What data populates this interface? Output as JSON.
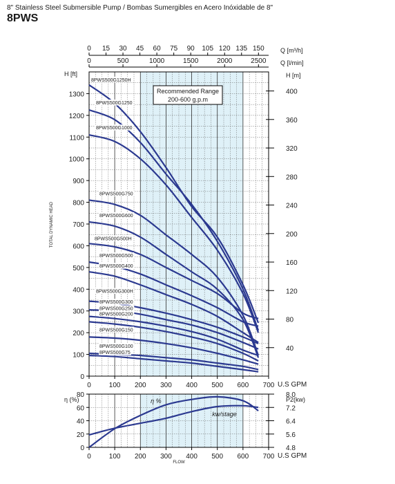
{
  "header": {
    "subtitle": "8\" Stainless Steel Submersible Pump / Bombas Sumergibles en Acero Inóxidable de 8\"",
    "title": "8PWS"
  },
  "colors": {
    "curve": "#2b3990",
    "range_fill": "#dff1f8",
    "grid": "#666666",
    "axis": "#000000"
  },
  "chart_data": [
    {
      "type": "line",
      "subtitle": "Recommended Range",
      "title": "200-600 g.p.m",
      "xlabel": "U.S GPM",
      "ylabel": "H [ft]",
      "side_label": "TOTAL DYNAMIC HEAD",
      "xlim": [
        0,
        700
      ],
      "ylim": [
        0,
        1400
      ],
      "x_ticks": [
        0,
        100,
        200,
        300,
        400,
        500,
        600,
        700
      ],
      "y_ticks": [
        0,
        100,
        200,
        300,
        400,
        500,
        600,
        700,
        800,
        900,
        1000,
        1100,
        1200,
        1300
      ],
      "y2_label": "H [m]",
      "y2_ticks": [
        40,
        80,
        120,
        160,
        200,
        240,
        280,
        320,
        360,
        400
      ],
      "top_axis_1": {
        "label": "Q [m³/h]",
        "ticks": [
          0,
          15,
          30,
          45,
          60,
          75,
          90,
          105,
          120,
          135,
          150
        ]
      },
      "top_axis_2": {
        "label": "Q [l/min]",
        "ticks": [
          0,
          500,
          1000,
          1500,
          2000,
          2500
        ]
      },
      "recommended_range": [
        200,
        600
      ],
      "grid": true,
      "series": [
        {
          "name": "8PWS500G1250H",
          "x": [
            0,
            100,
            200,
            300,
            400,
            500,
            600,
            660
          ],
          "y": [
            1340,
            1255,
            1125,
            960,
            780,
            640,
            420,
            245
          ]
        },
        {
          "name": "8PWS500G1250",
          "x": [
            0,
            100,
            200,
            300,
            400,
            500,
            600,
            660
          ],
          "y": [
            1225,
            1180,
            1075,
            930,
            790,
            620,
            400,
            210
          ]
        },
        {
          "name": "8PWS500G1000",
          "x": [
            0,
            100,
            200,
            300,
            400,
            500,
            600,
            660
          ],
          "y": [
            1110,
            1080,
            1000,
            880,
            730,
            580,
            380,
            200
          ]
        },
        {
          "name": "8PWS500G750",
          "x": [
            0,
            100,
            200,
            300,
            400,
            500,
            600,
            660
          ],
          "y": [
            810,
            790,
            740,
            650,
            560,
            455,
            280,
            95
          ]
        },
        {
          "name": "8PWS500G600",
          "x": [
            0,
            100,
            200,
            300,
            400,
            500,
            600,
            660
          ],
          "y": [
            710,
            690,
            640,
            560,
            480,
            400,
            260,
            85
          ]
        },
        {
          "name": "8PWS500G500H",
          "x": [
            0,
            100,
            200,
            300,
            400,
            500,
            600,
            660
          ],
          "y": [
            610,
            595,
            560,
            500,
            440,
            380,
            290,
            265
          ]
        },
        {
          "name": "8PWS500G500",
          "x": [
            0,
            100,
            200,
            300,
            400,
            500,
            600,
            660
          ],
          "y": [
            525,
            505,
            470,
            420,
            370,
            315,
            250,
            230
          ]
        },
        {
          "name": "8PWS500G400",
          "x": [
            0,
            100,
            200,
            300,
            400,
            500,
            600,
            660
          ],
          "y": [
            480,
            460,
            420,
            375,
            330,
            275,
            200,
            155
          ]
        },
        {
          "name": "8PWS500G300H",
          "x": [
            0,
            100,
            200,
            300,
            400,
            500,
            600,
            660
          ],
          "y": [
            345,
            335,
            315,
            290,
            260,
            225,
            180,
            150
          ]
        },
        {
          "name": "8PWS500G300",
          "x": [
            0,
            100,
            200,
            300,
            400,
            500,
            600,
            660
          ],
          "y": [
            305,
            300,
            285,
            260,
            235,
            200,
            155,
            125
          ]
        },
        {
          "name": "8PWS500G250",
          "x": [
            0,
            100,
            200,
            300,
            400,
            500,
            600,
            660
          ],
          "y": [
            275,
            265,
            250,
            230,
            205,
            170,
            120,
            95
          ]
        },
        {
          "name": "8PWS500G200",
          "x": [
            0,
            100,
            200,
            300,
            400,
            500,
            600,
            660
          ],
          "y": [
            250,
            240,
            225,
            205,
            180,
            150,
            105,
            70
          ]
        },
        {
          "name": "8PWS500G150",
          "x": [
            0,
            100,
            200,
            300,
            400,
            500,
            600,
            660
          ],
          "y": [
            180,
            175,
            165,
            150,
            130,
            105,
            75,
            55
          ]
        },
        {
          "name": "8PWS500G100",
          "x": [
            0,
            100,
            200,
            300,
            400,
            500,
            600,
            660
          ],
          "y": [
            105,
            100,
            95,
            85,
            75,
            60,
            45,
            30
          ]
        },
        {
          "name": "8PWS500G75",
          "x": [
            0,
            100,
            200,
            300,
            400,
            500,
            600,
            660
          ],
          "y": [
            95,
            90,
            80,
            70,
            60,
            45,
            30,
            20
          ]
        }
      ]
    },
    {
      "type": "line",
      "xlabel": "U.S GPM",
      "x_caption": "FLOW",
      "ylabel": "η (%)",
      "y2_label": "P2(kw)",
      "xlim": [
        0,
        700
      ],
      "ylim": [
        0,
        80
      ],
      "x_ticks": [
        0,
        100,
        200,
        300,
        400,
        500,
        600,
        700
      ],
      "y_ticks": [
        0,
        20,
        40,
        60,
        80
      ],
      "y2_ticks": [
        "4.8",
        "5.6",
        "6.4",
        "7.2",
        "8.0"
      ],
      "y2_lim": [
        4.8,
        8.0
      ],
      "recommended_range": [
        200,
        600
      ],
      "series": [
        {
          "name": "η %",
          "axis": "left",
          "x": [
            0,
            100,
            200,
            300,
            400,
            500,
            600,
            660
          ],
          "y": [
            0,
            28,
            48,
            64,
            72,
            76,
            70,
            55
          ]
        },
        {
          "name": "kw/stage",
          "axis": "right",
          "x": [
            0,
            100,
            200,
            300,
            400,
            500,
            600,
            660
          ],
          "y": [
            5.55,
            5.95,
            6.25,
            6.55,
            6.95,
            7.25,
            7.3,
            7.2
          ]
        }
      ]
    }
  ]
}
